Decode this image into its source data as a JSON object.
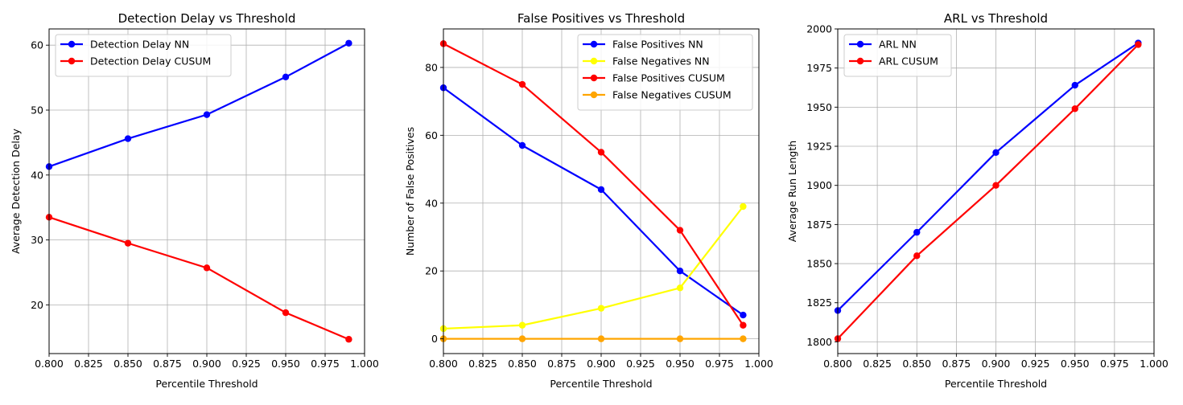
{
  "chart_data": [
    {
      "type": "line",
      "title": "Detection Delay vs Threshold",
      "xlabel": "Percentile Threshold",
      "ylabel": "Average Detection Delay",
      "xlim": [
        0.8,
        1.0
      ],
      "ylim": [
        12.5,
        62.5
      ],
      "xticks": [
        0.8,
        0.825,
        0.85,
        0.875,
        0.9,
        0.925,
        0.95,
        0.975,
        1.0
      ],
      "xtick_labels": [
        "0.800",
        "0.825",
        "0.850",
        "0.875",
        "0.900",
        "0.925",
        "0.950",
        "0.975",
        "1.000"
      ],
      "yticks": [
        20,
        30,
        40,
        50,
        60
      ],
      "ytick_labels": [
        "20",
        "30",
        "40",
        "50",
        "60"
      ],
      "grid": true,
      "legend": "top-left",
      "x": [
        0.8,
        0.85,
        0.9,
        0.95,
        0.99
      ],
      "series": [
        {
          "name": "Detection Delay NN",
          "color": "#0000ff",
          "values": [
            41.3,
            45.6,
            49.3,
            55.1,
            60.3
          ]
        },
        {
          "name": "Detection Delay CUSUM",
          "color": "#ff0000",
          "values": [
            33.5,
            29.5,
            25.7,
            18.8,
            14.7
          ]
        }
      ]
    },
    {
      "type": "line",
      "title": "False Positives vs Threshold",
      "xlabel": "Percentile Threshold",
      "ylabel": "Number of False Positives",
      "xlim": [
        0.8,
        1.0
      ],
      "ylim": [
        -4.35,
        91.35
      ],
      "xticks": [
        0.8,
        0.825,
        0.85,
        0.875,
        0.9,
        0.925,
        0.95,
        0.975,
        1.0
      ],
      "xtick_labels": [
        "0.800",
        "0.825",
        "0.850",
        "0.875",
        "0.900",
        "0.925",
        "0.950",
        "0.975",
        "1.000"
      ],
      "yticks": [
        0,
        20,
        40,
        60,
        80
      ],
      "ytick_labels": [
        "0",
        "20",
        "40",
        "60",
        "80"
      ],
      "grid": true,
      "legend": "top-right",
      "x": [
        0.8,
        0.85,
        0.9,
        0.95,
        0.99
      ],
      "series": [
        {
          "name": "False Positives NN",
          "color": "#0000ff",
          "values": [
            74,
            57,
            44,
            20,
            7
          ]
        },
        {
          "name": "False Negatives NN",
          "color": "#ffff00",
          "values": [
            3,
            4,
            9,
            15,
            39
          ]
        },
        {
          "name": "False Positives CUSUM",
          "color": "#ff0000",
          "values": [
            87,
            75,
            55,
            32,
            4
          ]
        },
        {
          "name": "False Negatives CUSUM",
          "color": "#ffa500",
          "values": [
            0,
            0,
            0,
            0,
            0
          ]
        }
      ]
    },
    {
      "type": "line",
      "title": "ARL vs Threshold",
      "xlabel": "Percentile Threshold",
      "ylabel": "Average Run Length",
      "xlim": [
        0.8,
        1.0
      ],
      "ylim": [
        1792.5,
        2000
      ],
      "xticks": [
        0.8,
        0.825,
        0.85,
        0.875,
        0.9,
        0.925,
        0.95,
        0.975,
        1.0
      ],
      "xtick_labels": [
        "0.800",
        "0.825",
        "0.850",
        "0.875",
        "0.900",
        "0.925",
        "0.950",
        "0.975",
        "1.000"
      ],
      "yticks": [
        1800,
        1825,
        1850,
        1875,
        1900,
        1925,
        1950,
        1975,
        2000
      ],
      "ytick_labels": [
        "1800",
        "1825",
        "1850",
        "1875",
        "1900",
        "1925",
        "1950",
        "1975",
        "2000"
      ],
      "grid": true,
      "legend": "top-left",
      "x": [
        0.8,
        0.85,
        0.9,
        0.95,
        0.99
      ],
      "series": [
        {
          "name": "ARL NN",
          "color": "#0000ff",
          "values": [
            1820,
            1870,
            1921,
            1964,
            1991
          ]
        },
        {
          "name": "ARL CUSUM",
          "color": "#ff0000",
          "values": [
            1802,
            1855,
            1900,
            1949,
            1990
          ]
        }
      ]
    }
  ]
}
